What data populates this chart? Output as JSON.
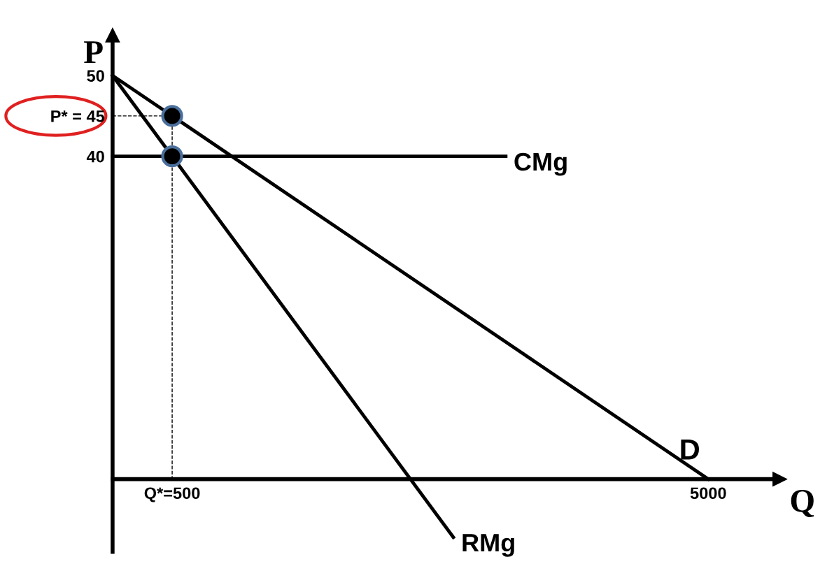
{
  "chart_data": {
    "type": "line",
    "xlabel": "Q",
    "ylabel": "P",
    "xlim": [
      0,
      5600
    ],
    "ylim": [
      -9,
      55
    ],
    "xticks": [
      {
        "value": 500,
        "label": "Q*=500"
      },
      5000
    ],
    "yticks": [
      40,
      {
        "value": 45,
        "label": "P* = 45"
      },
      50
    ],
    "legend": false,
    "grid": false,
    "series": [
      {
        "name": "D",
        "color": "#000000",
        "x": [
          0,
          5000
        ],
        "values": [
          50,
          0
        ]
      },
      {
        "name": "RMg",
        "color": "#000000",
        "x": [
          0,
          2860
        ],
        "values": [
          50,
          -7.2
        ]
      },
      {
        "name": "CMg",
        "color": "#000000",
        "x": [
          0,
          3300
        ],
        "values": [
          40,
          40
        ]
      },
      {
        "color": "#000000",
        "x": [
          0,
          500
        ],
        "values": [
          45,
          45
        ],
        "line_style": "dashed"
      },
      {
        "color": "#000000",
        "x": [
          500,
          500
        ],
        "values": [
          45,
          0
        ],
        "line_style": "dashed"
      },
      {
        "type": "scatter",
        "color": "#000000",
        "x": [
          500,
          500
        ],
        "values": [
          45,
          40
        ],
        "marker": "circle"
      }
    ]
  }
}
